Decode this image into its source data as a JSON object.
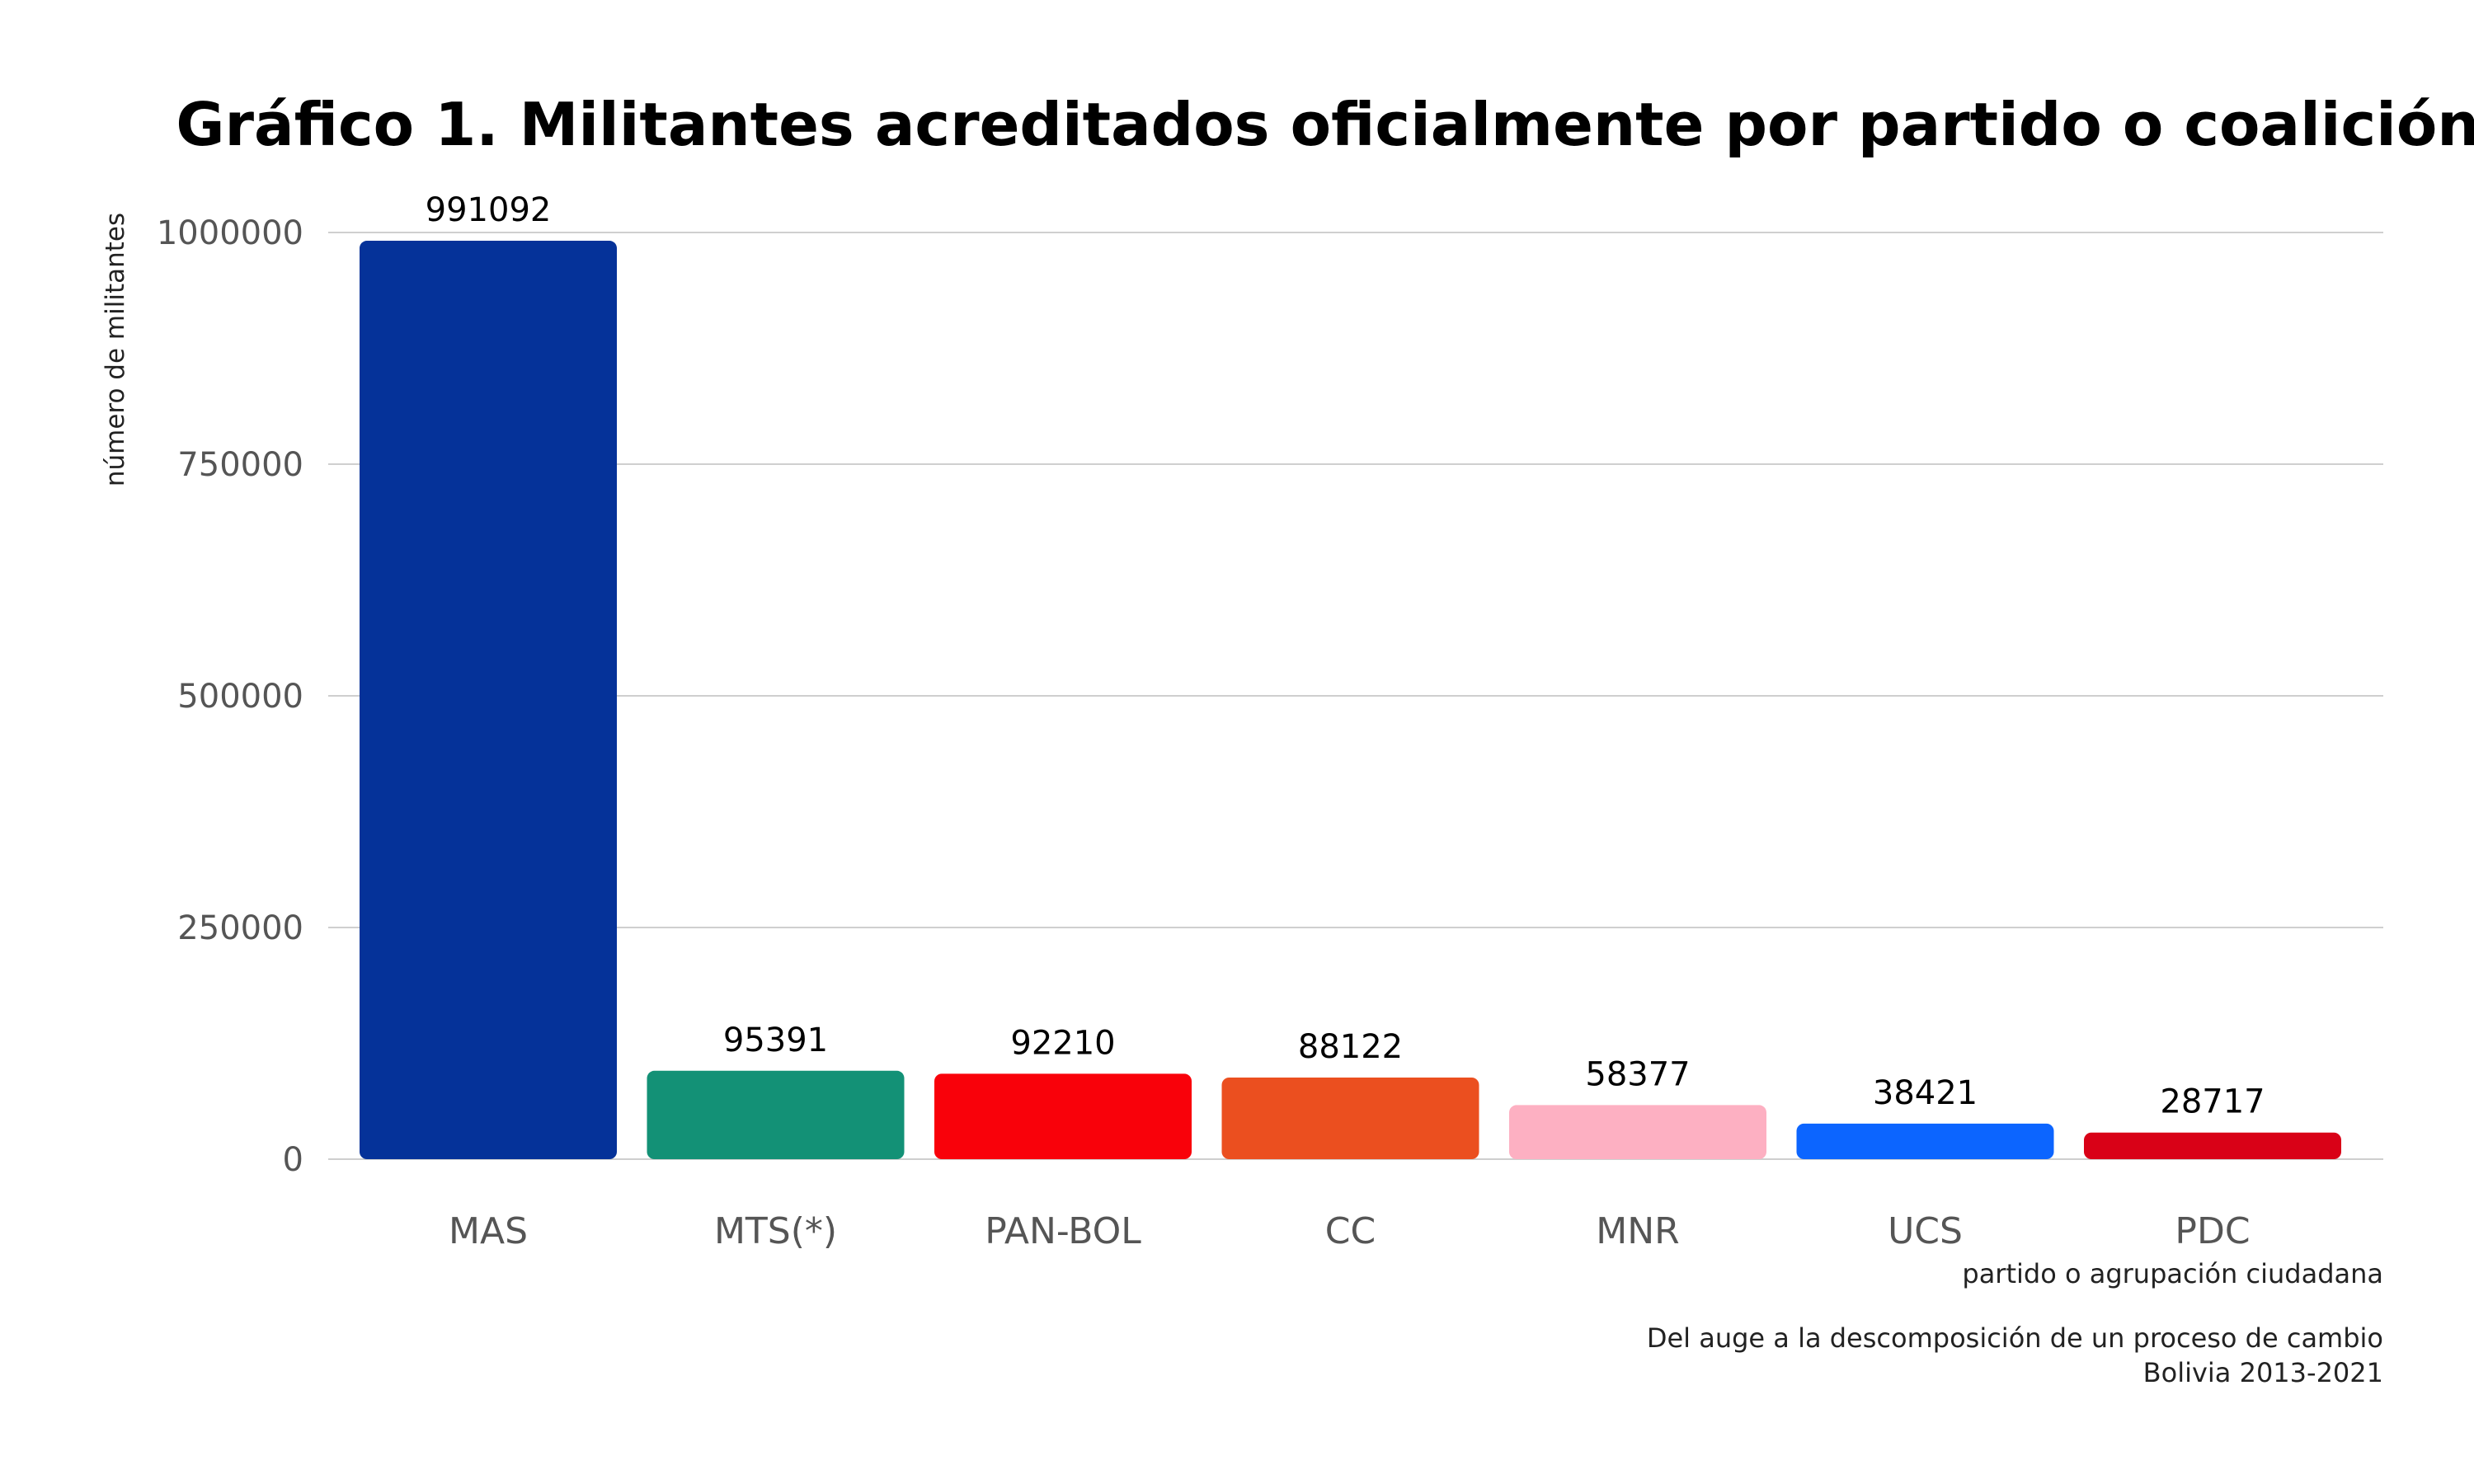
{
  "chart_data": {
    "type": "bar",
    "title": "Gráfico 1. Militantes acreditados oficialmente por partido o coalición",
    "xlabel": "partido o agrupación ciudadana",
    "ylabel": "número de militantes",
    "caption_line1": "Del auge a la descomposición de un proceso de cambio",
    "caption_line2": "Bolivia 2013-2021",
    "categories": [
      "MAS",
      "MTS(*)",
      "PAN-BOL",
      "CC",
      "MNR",
      "UCS",
      "PDC"
    ],
    "values": [
      991092,
      95391,
      92210,
      88122,
      58377,
      38421,
      28717
    ],
    "colors": [
      "#053299",
      "#139176",
      "#f9010a",
      "#eb4f1f",
      "#fdb0c2",
      "#0c65ff",
      "#d90117"
    ],
    "yticks": [
      0,
      250000,
      500000,
      750000,
      1000000
    ],
    "ytick_labels": [
      "0",
      "250000",
      "500000",
      "750000",
      "1000000"
    ],
    "ylim": [
      0,
      1000000
    ],
    "grid": true,
    "legend": "none"
  }
}
